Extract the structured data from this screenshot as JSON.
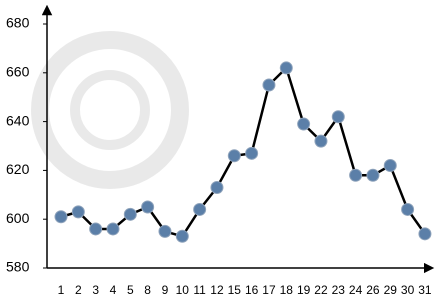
{
  "chart_data": {
    "type": "line",
    "categories": [
      "1",
      "2",
      "3",
      "4",
      "5",
      "8",
      "9",
      "10",
      "11",
      "12",
      "15",
      "16",
      "17",
      "18",
      "19",
      "22",
      "23",
      "24",
      "26",
      "29",
      "30",
      "31"
    ],
    "series": [
      {
        "color": "#000000",
        "marker_color": "#5b7fa8",
        "values": [
          601,
          603,
          596,
          596,
          602,
          605,
          595,
          593,
          604,
          613,
          626,
          627,
          655,
          662,
          639,
          632,
          642,
          618,
          618,
          622,
          604,
          594
        ]
      }
    ],
    "ylim": [
      580,
      680
    ],
    "yticks": [
      580,
      600,
      620,
      640,
      660,
      680
    ]
  }
}
